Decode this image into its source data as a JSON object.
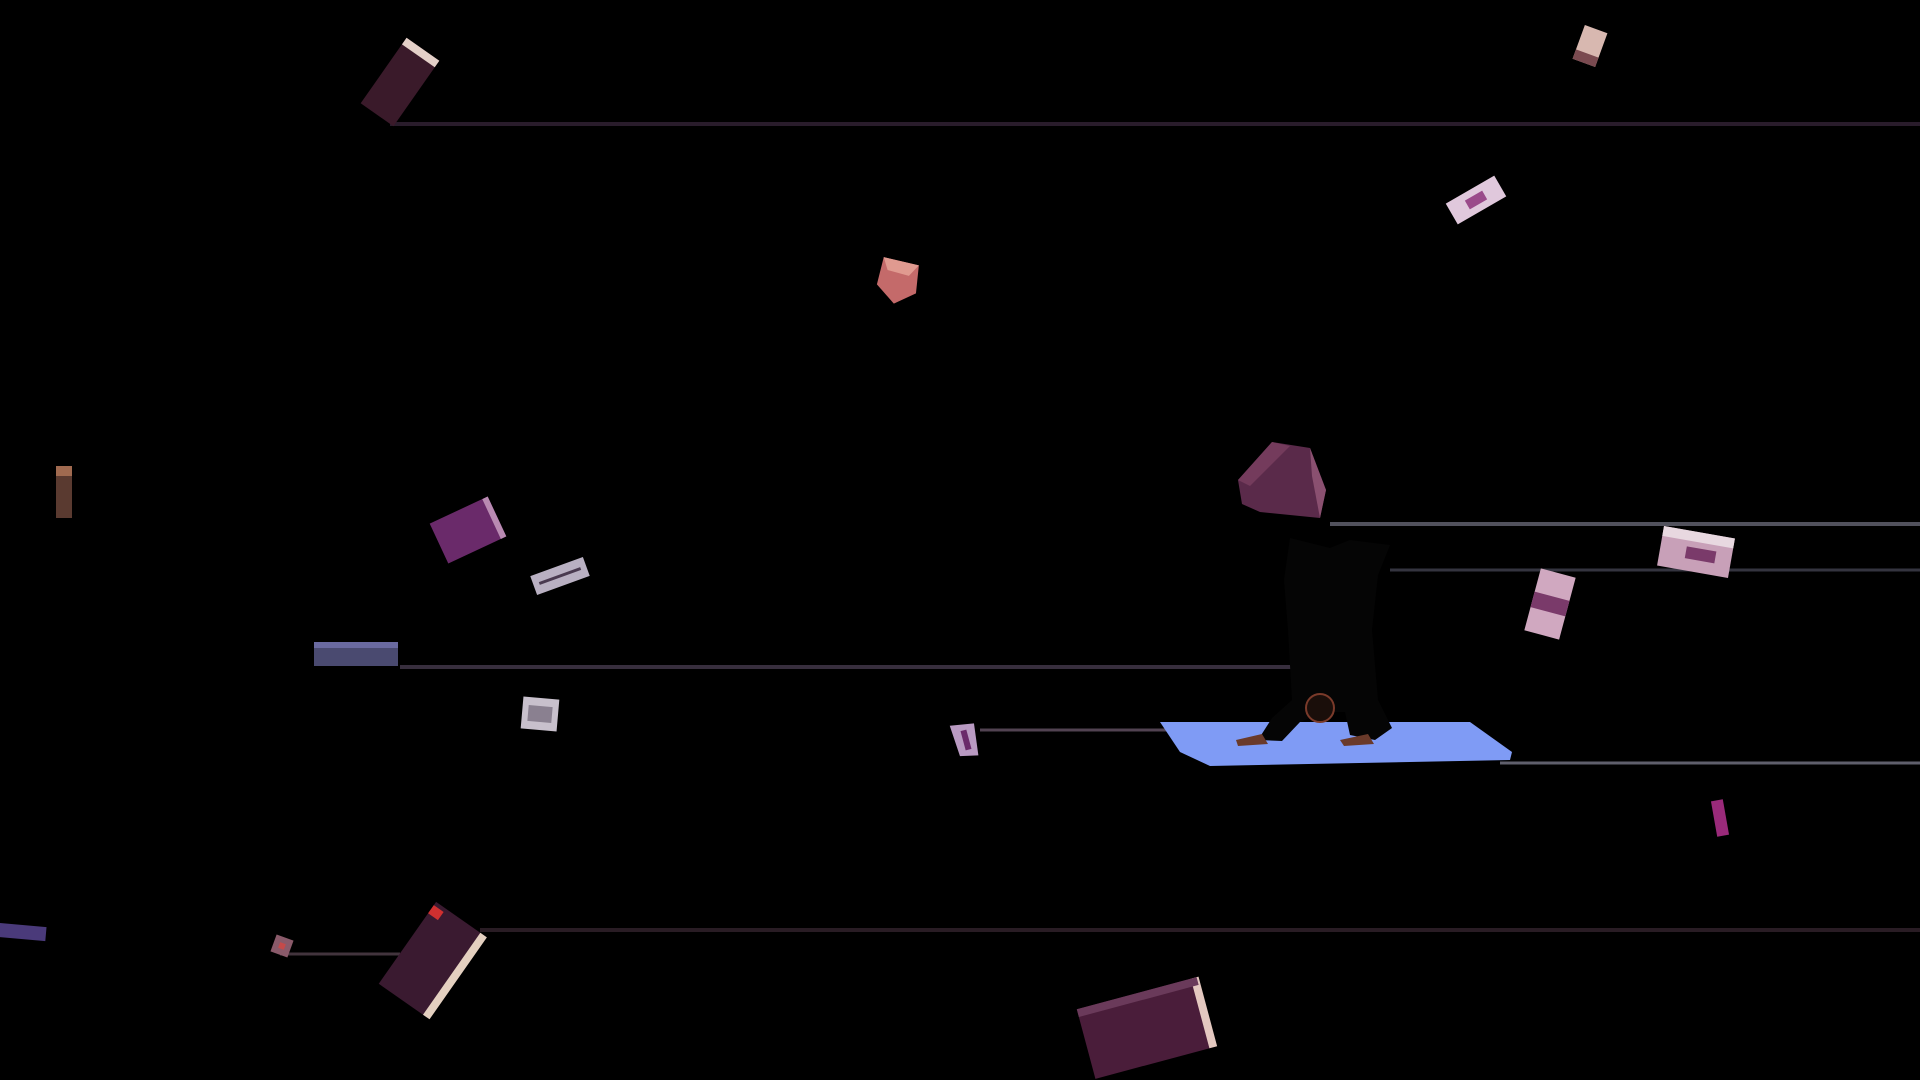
{
  "scene": {
    "background": "#000000",
    "streak_color": "#3a2a3a",
    "floor_glow_color": "#7f9bf5",
    "figure_color": "#050505",
    "cube_held": {
      "name": "held-cube",
      "color": "#5a2a4a",
      "highlight": "#8a5070"
    },
    "debris_colors": {
      "plum": "#4a1d3a",
      "violet": "#6a2a6a",
      "rose": "#c46a6a",
      "lavender": "#b99ac2",
      "slate": "#4a4a70",
      "magenta": "#9a2a7a",
      "brown": "#5a3a30"
    }
  }
}
